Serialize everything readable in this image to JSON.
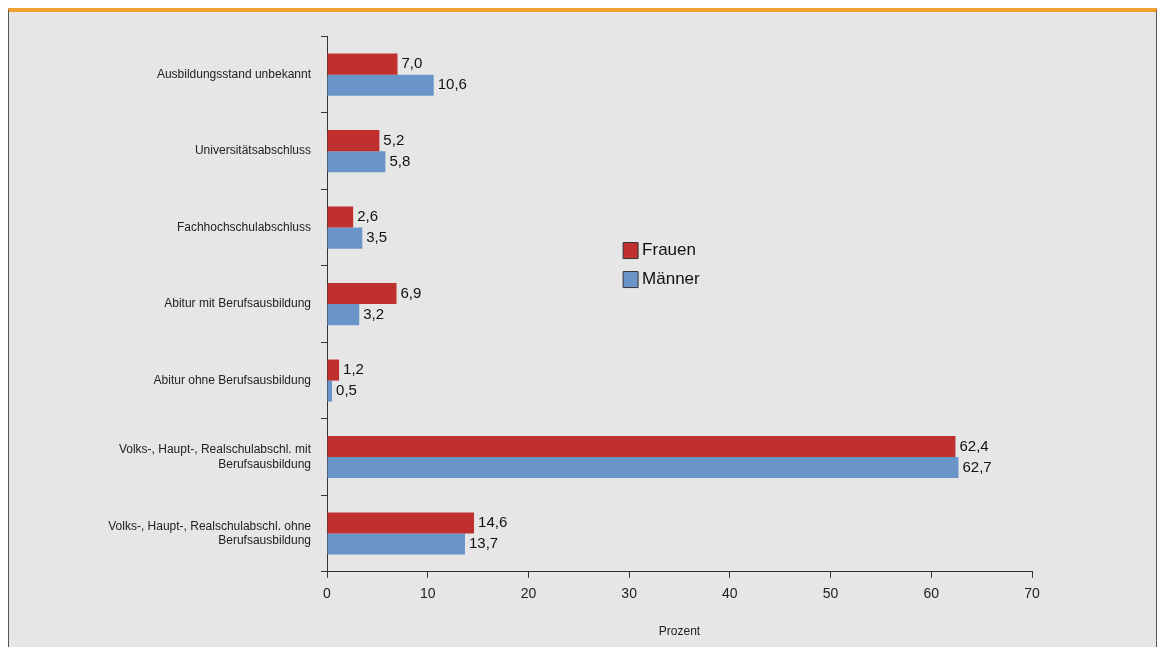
{
  "chart_data": {
    "type": "bar",
    "orientation": "horizontal",
    "xlabel": "Prozent",
    "categories": [
      "Ausbildungsstand unbekannt",
      "Universitätsabschluss",
      "Fachhochschulabschluss",
      "Abitur mit Berufsausbildung",
      "Abitur ohne Berufsausbildung",
      "Volks-, Haupt-, Realschulabschl. mit Berufsausbildung",
      "Volks-, Haupt-, Realschulabschl. ohne Berufsausbildung"
    ],
    "series": [
      {
        "name": "Frauen",
        "color": "#c0302e",
        "values": [
          7.0,
          5.2,
          2.6,
          6.9,
          1.2,
          62.4,
          14.6
        ],
        "value_labels": [
          "7,0",
          "5,2",
          "2,6",
          "6,9",
          "1,2",
          "62,4",
          "14,6"
        ]
      },
      {
        "name": "Männer",
        "color": "#6a95c9",
        "values": [
          10.6,
          5.8,
          3.5,
          3.2,
          0.5,
          62.7,
          13.7
        ],
        "value_labels": [
          "10,6",
          "5,8",
          "3,5",
          "3,2",
          "0,5",
          "62,7",
          "13,7"
        ]
      }
    ],
    "xlim": [
      0,
      70
    ],
    "xticks": [
      0,
      10,
      20,
      30,
      40,
      50,
      60,
      70
    ],
    "grid": false,
    "legend": "center"
  }
}
